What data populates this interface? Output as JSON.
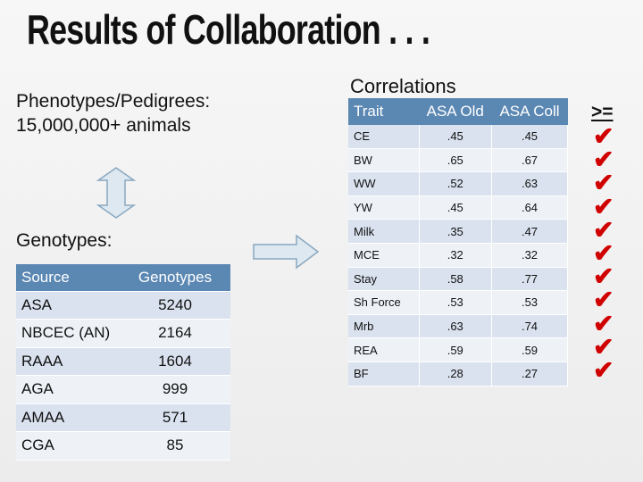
{
  "title": "Results of Collaboration . . .",
  "phenotypes": {
    "line1": "Phenotypes/Pedigrees:",
    "line2": "15,000,000+ animals"
  },
  "genotypes_heading": "Genotypes:",
  "source_table": {
    "headers": [
      "Source",
      "Genotypes"
    ],
    "rows": [
      [
        "ASA",
        "5240"
      ],
      [
        "NBCEC (AN)",
        "2164"
      ],
      [
        "RAAA",
        "1604"
      ],
      [
        "AGA",
        "999"
      ],
      [
        "AMAA",
        "571"
      ],
      [
        "CGA",
        "85"
      ]
    ]
  },
  "correlations_heading": "Correlations",
  "correlation_table": {
    "headers": [
      "Trait",
      "ASA Old",
      "ASA Coll"
    ],
    "rows": [
      [
        "CE",
        ".45",
        ".45"
      ],
      [
        "BW",
        ".65",
        ".67"
      ],
      [
        "WW",
        ".52",
        ".63"
      ],
      [
        "YW",
        ".45",
        ".64"
      ],
      [
        "Milk",
        ".35",
        ".47"
      ],
      [
        "MCE",
        ".32",
        ".32"
      ],
      [
        "Stay",
        ".58",
        ".77"
      ],
      [
        "Sh Force",
        ".53",
        ".53"
      ],
      [
        "Mrb",
        ".63",
        ".74"
      ],
      [
        "REA",
        ".59",
        ".59"
      ],
      [
        "BF",
        ".28",
        ".27"
      ]
    ]
  },
  "comparison_label": ">=",
  "check_icon": "check-mark-icon",
  "colors": {
    "header_fill": "#5b87b3",
    "row_dark": "#d9e2ee",
    "row_light": "#eef2f7",
    "check": "#d00000",
    "arrow_fill": "#dde8f0",
    "arrow_stroke": "#8aa7bf"
  }
}
